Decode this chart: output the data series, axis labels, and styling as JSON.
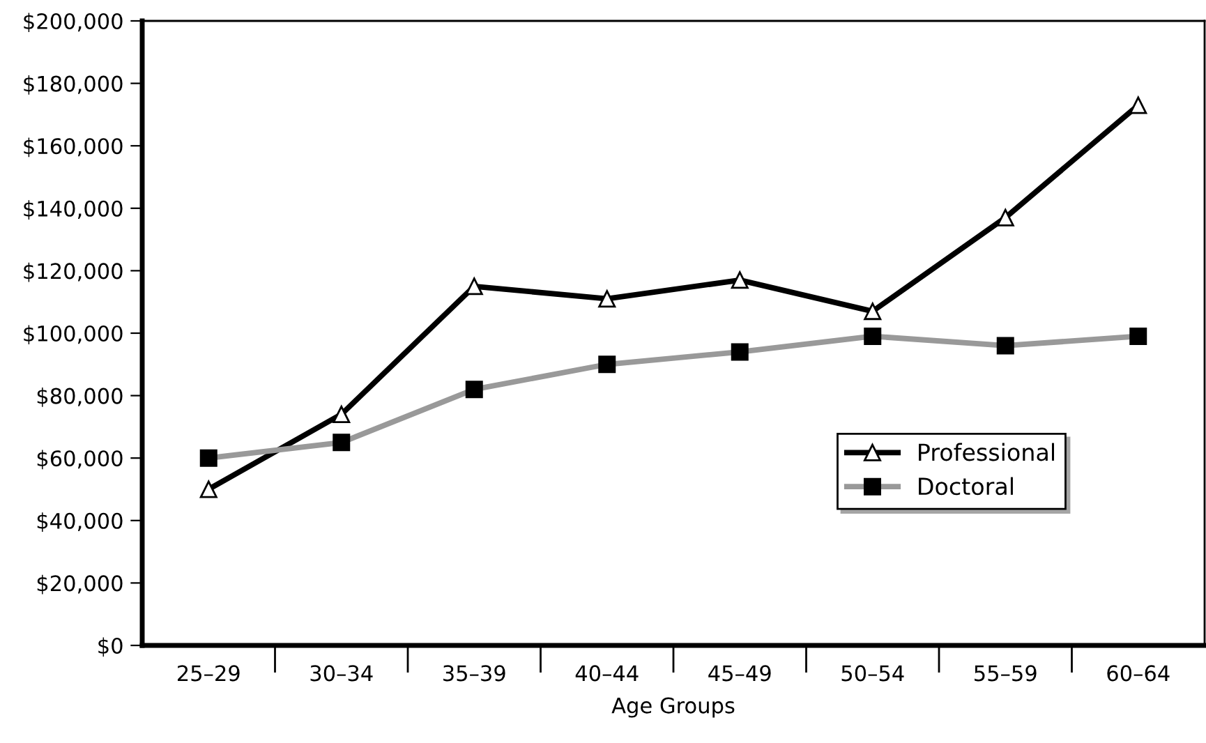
{
  "chart_data": {
    "type": "line",
    "xlabel": "Age Groups",
    "categories": [
      "25–29",
      "30–34",
      "35–39",
      "40–44",
      "45–49",
      "50–54",
      "55–59",
      "60–64"
    ],
    "series": [
      {
        "name": "Professional",
        "color": "#000000",
        "marker": "triangle",
        "values": [
          50000,
          74000,
          115000,
          111000,
          117000,
          107000,
          137000,
          173000
        ]
      },
      {
        "name": "Doctoral",
        "color": "#999999",
        "marker": "square",
        "values": [
          60000,
          65000,
          82000,
          90000,
          94000,
          99000,
          96000,
          99000
        ]
      }
    ],
    "ylim": [
      0,
      200000
    ],
    "yticks": [
      {
        "value": 0,
        "label": "$0"
      },
      {
        "value": 20000,
        "label": "$20,000"
      },
      {
        "value": 40000,
        "label": "$40,000"
      },
      {
        "value": 60000,
        "label": "$60,000"
      },
      {
        "value": 80000,
        "label": "$80,000"
      },
      {
        "value": 100000,
        "label": "$100,000"
      },
      {
        "value": 120000,
        "label": "$120,000"
      },
      {
        "value": 140000,
        "label": "$140,000"
      },
      {
        "value": 160000,
        "label": "$160,000"
      },
      {
        "value": 180000,
        "label": "$180,000"
      },
      {
        "value": 200000,
        "label": "$200,000"
      }
    ],
    "grid": false,
    "legend": "lower right",
    "line_style": "solid"
  }
}
